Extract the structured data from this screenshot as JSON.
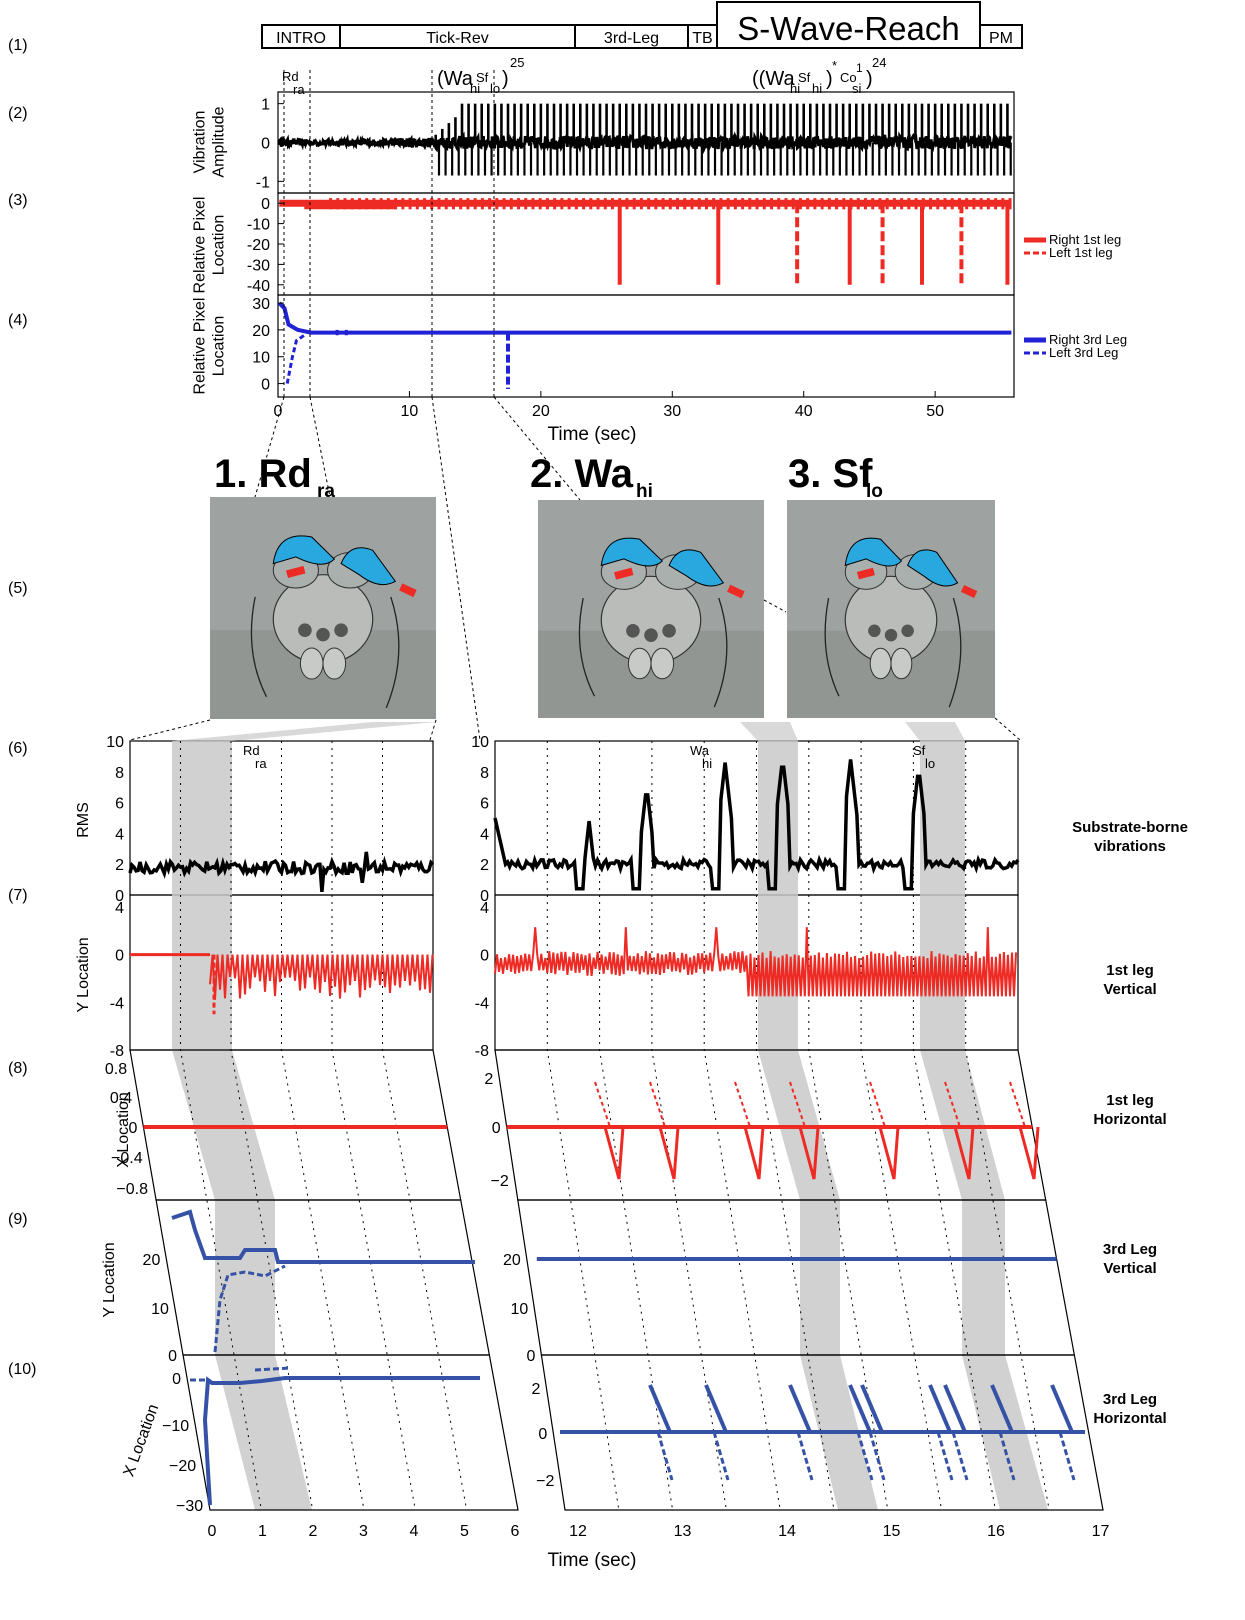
{
  "row_labels": [
    "(1)",
    "(2)",
    "(3)",
    "(4)",
    "(5)",
    "(6)",
    "(7)",
    "(8)",
    "(9)",
    "(10)"
  ],
  "top_bar": {
    "segments": [
      "INTRO",
      "Tick-Rev",
      "3rd-Leg",
      "TB",
      "S-Wave-Reach",
      "PM"
    ]
  },
  "annotations": {
    "rd_top": "Rd",
    "rd_sub": "ra",
    "seq1": "(Wa",
    "seq1_hi": "hi",
    "seq1_sf": "Sf",
    "seq1_lo": "lo",
    "seq1_close": ")",
    "seq1_exp": "25",
    "seq2": "((Wa",
    "seq2_hi": "hi",
    "seq2_sf": "Sf",
    "seq2_hi2": "hi",
    "seq2_close": ")",
    "seq2_star": "*",
    "seq2_co": "Co",
    "seq2_co_sup": "1",
    "seq2_co_sub": "si",
    "seq2_close2": ")",
    "seq2_exp": "24"
  },
  "colors": {
    "red": "#ee2a24",
    "blue": "#2121d6",
    "darkblue": "#3552a6",
    "black": "#000000",
    "gray": "#c9c9c9",
    "cyan": "#29a8e0"
  },
  "top_panels": {
    "ylabel_vib": [
      "Vibration",
      "Amplitude"
    ],
    "ylabel_pix": [
      "Relative Pixel",
      "Location"
    ],
    "vib_ticks": [
      "1",
      "0",
      "-1"
    ],
    "red_ticks": [
      "0",
      "-10",
      "-20",
      "-30",
      "-40"
    ],
    "blue_ticks": [
      "30",
      "20",
      "10",
      "0"
    ],
    "x_ticks": [
      "0",
      "10",
      "20",
      "30",
      "40",
      "50"
    ],
    "xlabel": "Time (sec)",
    "legend_red": [
      "Right 1st leg",
      "Left 1st leg"
    ],
    "legend_blue": [
      "Right 3rd Leg",
      "Left 3rd Leg"
    ]
  },
  "photo_titles": {
    "t1_main": "1. Rd",
    "t1_sub": "ra",
    "t2_main": "2. Wa",
    "t2_sub": "hi",
    "t3_main": "3. Sf",
    "t3_sub": "lo"
  },
  "bottom": {
    "shade_labels": [
      {
        "top": "Rd",
        "sub": "ra"
      },
      {
        "top": "Wa",
        "sub": "hi"
      },
      {
        "top": "Sf",
        "sub": "lo"
      }
    ],
    "rms_label": "RMS",
    "rms_ticks": [
      "10",
      "8",
      "6",
      "4",
      "2",
      "0"
    ],
    "y_location": "Y Location",
    "x_location": "X Location",
    "r7_ticks": [
      "4",
      "0",
      "-4",
      "-8"
    ],
    "r8_left_ticks": [
      "0.8",
      "0.4",
      "0",
      "−0.4",
      "−0.8"
    ],
    "r8_right_ticks": [
      "2",
      "0",
      "−2"
    ],
    "r9_ticks": [
      "20",
      "10",
      "0"
    ],
    "r10_left_ticks": [
      "0",
      "−10",
      "−20",
      "−30"
    ],
    "r10_right_ticks": [
      "2",
      "0",
      "−2"
    ],
    "x_left_ticks": [
      "0",
      "1",
      "2",
      "3",
      "4",
      "5",
      "6"
    ],
    "x_right_ticks": [
      "12",
      "13",
      "14",
      "15",
      "16",
      "17"
    ],
    "xlabel": "Time (sec)",
    "side_labels": [
      [
        "Substrate-borne",
        "vibrations"
      ],
      [
        "1st leg",
        "Vertical"
      ],
      [
        "1st leg",
        "Horizontal"
      ],
      [
        "3rd Leg",
        "Vertical"
      ],
      [
        "3rd Leg",
        "Horizontal"
      ]
    ]
  },
  "chart_data": [
    {
      "type": "line",
      "name_ref": "vibration",
      "x": [
        0,
        5,
        10,
        12,
        14,
        16,
        18,
        20,
        25,
        30,
        35,
        40,
        45,
        50,
        55
      ],
      "ylim": [
        -1.3,
        1.3
      ],
      "xlim": [
        0,
        56
      ],
      "pulse_times": [
        12,
        13,
        14,
        15,
        16,
        17,
        18,
        19,
        20,
        21,
        22,
        23,
        24,
        25,
        26,
        27,
        28,
        29,
        30,
        31,
        32,
        33,
        34,
        35,
        36,
        37,
        38,
        39,
        40,
        41,
        42,
        43,
        44,
        45,
        46,
        47,
        48,
        49,
        50,
        51,
        52,
        53,
        54,
        55
      ]
    },
    {
      "type": "line",
      "name_ref": "first_leg_pixel",
      "ylim": [
        -45,
        5
      ],
      "xlim": [
        0,
        56
      ],
      "drop_times": [
        26,
        33.5,
        39.5,
        43.5,
        46,
        49,
        52,
        55.5
      ]
    },
    {
      "type": "line",
      "name_ref": "third_leg_pixel",
      "ylim": [
        -5,
        33
      ],
      "xlim": [
        0,
        56
      ],
      "baseline": 19,
      "dip_time": 17.5
    },
    {
      "type": "line",
      "name_ref": "rms",
      "ylim": [
        0,
        10
      ],
      "left_xlim": [
        0,
        5
      ],
      "right_xlim": [
        12,
        17
      ],
      "right_peaks": [
        [
          12.9,
          4.8
        ],
        [
          13.45,
          7.1
        ],
        [
          14.2,
          8.6
        ],
        [
          14.75,
          8.9
        ],
        [
          15.4,
          8.8
        ],
        [
          16.05,
          8.3
        ]
      ]
    }
  ]
}
